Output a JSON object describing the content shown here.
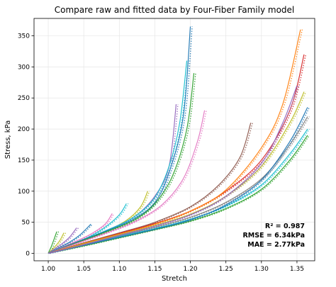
{
  "chart_data": {
    "type": "line",
    "title": "Compare raw and fitted data by Four-Fiber Family model",
    "xlabel": "Stretch",
    "ylabel": "Stress, kPa",
    "xlim": [
      0.98,
      1.375
    ],
    "ylim": [
      -12,
      378
    ],
    "xticks": [
      1.0,
      1.05,
      1.1,
      1.15,
      1.2,
      1.25,
      1.3,
      1.35
    ],
    "xtick_labels": [
      "1.00",
      "1.05",
      "1.10",
      "1.15",
      "1.20",
      "1.25",
      "1.30",
      "1.35"
    ],
    "yticks": [
      0,
      50,
      100,
      150,
      200,
      250,
      300,
      350
    ],
    "ytick_labels": [
      "0",
      "50",
      "100",
      "150",
      "200",
      "250",
      "300",
      "350"
    ],
    "grid": true,
    "legend": "none",
    "annotations": [
      "R² = 0.987",
      "RMSE = 6.34kPa",
      "MAE = 2.77kPa"
    ],
    "colors": [
      "#1f77b4",
      "#ff7f0e",
      "#2ca02c",
      "#d62728",
      "#9467bd",
      "#8c564b",
      "#e377c2",
      "#7f7f7f",
      "#bcbd22",
      "#17becf"
    ],
    "series": [
      {
        "color": "#2ca02c",
        "x": [
          1.0,
          1.004,
          1.008,
          1.012
        ],
        "y": [
          0,
          10,
          22,
          35
        ]
      },
      {
        "color": "#bcbd22",
        "x": [
          1.0,
          1.008,
          1.016,
          1.022
        ],
        "y": [
          0,
          9,
          20,
          33
        ]
      },
      {
        "color": "#9467bd",
        "x": [
          1.0,
          1.01,
          1.02,
          1.03,
          1.04
        ],
        "y": [
          0,
          8,
          16,
          26,
          41
        ]
      },
      {
        "color": "#1f77b4",
        "x": [
          1.0,
          1.015,
          1.03,
          1.045,
          1.06
        ],
        "y": [
          0,
          9,
          18,
          30,
          47
        ]
      },
      {
        "color": "#e377c2",
        "x": [
          1.0,
          1.02,
          1.04,
          1.06,
          1.08,
          1.09
        ],
        "y": [
          0,
          10,
          20,
          31,
          47,
          64
        ]
      },
      {
        "color": "#17becf",
        "x": [
          1.0,
          1.02,
          1.04,
          1.06,
          1.08,
          1.1,
          1.11
        ],
        "y": [
          0,
          9,
          18,
          28,
          42,
          62,
          80
        ]
      },
      {
        "color": "#bcbd22",
        "x": [
          1.0,
          1.04,
          1.08,
          1.11,
          1.13,
          1.14
        ],
        "y": [
          0,
          17,
          35,
          53,
          75,
          100
        ]
      },
      {
        "color": "#9467bd",
        "x": [
          1.0,
          1.04,
          1.08,
          1.12,
          1.15,
          1.17,
          1.18
        ],
        "y": [
          0,
          18,
          36,
          58,
          92,
          140,
          240
        ]
      },
      {
        "color": "#17becf",
        "x": [
          1.0,
          1.04,
          1.08,
          1.12,
          1.15,
          1.17,
          1.185,
          1.195
        ],
        "y": [
          0,
          18,
          36,
          58,
          90,
          140,
          210,
          310
        ]
      },
      {
        "color": "#1f77b4",
        "x": [
          1.0,
          1.04,
          1.08,
          1.12,
          1.15,
          1.17,
          1.19,
          1.2
        ],
        "y": [
          0,
          18,
          35,
          55,
          82,
          130,
          220,
          365
        ]
      },
      {
        "color": "#2ca02c",
        "x": [
          1.0,
          1.04,
          1.08,
          1.12,
          1.15,
          1.175,
          1.195,
          1.205
        ],
        "y": [
          0,
          17,
          34,
          53,
          80,
          125,
          200,
          290
        ]
      },
      {
        "color": "#e377c2",
        "x": [
          1.0,
          1.04,
          1.08,
          1.12,
          1.16,
          1.19,
          1.21,
          1.22
        ],
        "y": [
          0,
          16,
          32,
          50,
          78,
          120,
          180,
          230
        ]
      },
      {
        "color": "#8c564b",
        "x": [
          1.0,
          1.05,
          1.1,
          1.15,
          1.2,
          1.24,
          1.27,
          1.285
        ],
        "y": [
          0,
          17,
          33,
          50,
          75,
          110,
          155,
          210
        ]
      },
      {
        "color": "#d62728",
        "x": [
          1.0,
          1.05,
          1.1,
          1.15,
          1.2,
          1.25,
          1.3,
          1.34,
          1.36
        ],
        "y": [
          0,
          16,
          32,
          48,
          68,
          100,
          150,
          230,
          320
        ]
      },
      {
        "color": "#ff7f0e",
        "x": [
          1.0,
          1.05,
          1.1,
          1.15,
          1.2,
          1.25,
          1.3,
          1.33,
          1.355
        ],
        "y": [
          0,
          16,
          31,
          47,
          68,
          102,
          170,
          240,
          360
        ]
      },
      {
        "color": "#bcbd22",
        "x": [
          1.0,
          1.05,
          1.1,
          1.15,
          1.2,
          1.25,
          1.3,
          1.34,
          1.36
        ],
        "y": [
          0,
          15,
          30,
          45,
          63,
          92,
          140,
          210,
          260
        ]
      },
      {
        "color": "#7f7f7f",
        "x": [
          1.0,
          1.05,
          1.1,
          1.15,
          1.2,
          1.25,
          1.3,
          1.34,
          1.365
        ],
        "y": [
          0,
          14,
          28,
          42,
          58,
          82,
          120,
          175,
          220
        ]
      },
      {
        "color": "#17becf",
        "x": [
          1.0,
          1.05,
          1.1,
          1.15,
          1.2,
          1.25,
          1.3,
          1.34,
          1.365
        ],
        "y": [
          0,
          13,
          27,
          40,
          55,
          76,
          110,
          160,
          200
        ]
      },
      {
        "color": "#2ca02c",
        "x": [
          1.0,
          1.05,
          1.1,
          1.15,
          1.2,
          1.25,
          1.3,
          1.34,
          1.365
        ],
        "y": [
          0,
          12,
          25,
          38,
          52,
          72,
          103,
          150,
          190
        ]
      },
      {
        "color": "#1f77b4",
        "x": [
          1.0,
          1.05,
          1.1,
          1.15,
          1.2,
          1.25,
          1.3,
          1.34,
          1.365
        ],
        "y": [
          0,
          13,
          26,
          39,
          54,
          78,
          118,
          180,
          235
        ]
      },
      {
        "color": "#9467bd",
        "x": [
          1.0,
          1.05,
          1.1,
          1.15,
          1.2,
          1.25,
          1.3,
          1.33,
          1.35
        ],
        "y": [
          0,
          14,
          29,
          44,
          62,
          92,
          145,
          210,
          270
        ]
      }
    ]
  }
}
